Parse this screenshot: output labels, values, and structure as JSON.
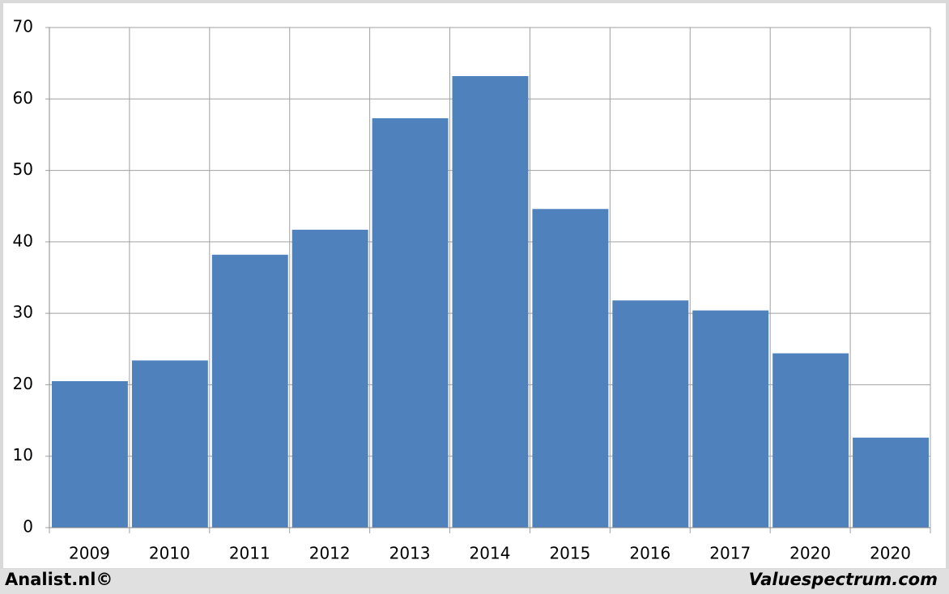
{
  "chart_data": {
    "type": "bar",
    "categories": [
      "2009",
      "2010",
      "2011",
      "2012",
      "2013",
      "2014",
      "2015",
      "2016",
      "2017",
      "2020",
      "2020"
    ],
    "values": [
      20.5,
      23.4,
      38.2,
      41.7,
      57.3,
      63.2,
      44.6,
      31.8,
      30.4,
      24.4,
      12.6
    ],
    "color": "#4f81bd",
    "ylim": [
      0,
      70
    ],
    "yticks": [
      0,
      10,
      20,
      30,
      40,
      50,
      60,
      70
    ],
    "grid": true
  },
  "footer": {
    "left": "Analist.nl©",
    "right": "Valuespectrum.com"
  }
}
